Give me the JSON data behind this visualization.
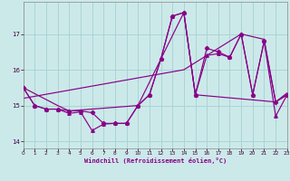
{
  "background_color": "#cce9e9",
  "grid_color": "#aad4d4",
  "line_color": "#880088",
  "xlim": [
    0,
    23
  ],
  "ylim": [
    13.8,
    17.9
  ],
  "yticks": [
    14,
    15,
    16,
    17
  ],
  "xticks": [
    0,
    1,
    2,
    3,
    4,
    5,
    6,
    7,
    8,
    9,
    10,
    11,
    12,
    13,
    14,
    15,
    16,
    17,
    18,
    19,
    20,
    21,
    22,
    23
  ],
  "xlabel": "Windchill (Refroidissement éolien,°C)",
  "series1_x": [
    0,
    1,
    2,
    3,
    4,
    5,
    6,
    7,
    8,
    9,
    10,
    11,
    12,
    13,
    14,
    15,
    16,
    17,
    18,
    19,
    20,
    21,
    22,
    23
  ],
  "series1_y": [
    15.5,
    15.0,
    14.9,
    14.9,
    14.85,
    14.85,
    14.8,
    14.5,
    14.5,
    14.5,
    15.0,
    15.3,
    16.3,
    17.5,
    17.6,
    15.3,
    16.6,
    16.5,
    16.35,
    17.0,
    15.3,
    16.8,
    15.1,
    15.3
  ],
  "series1_marker": "D",
  "series2_x": [
    0,
    1,
    2,
    3,
    4,
    5,
    6,
    7,
    8,
    9,
    10,
    11,
    12,
    13,
    14,
    15,
    16,
    17,
    18,
    19,
    20,
    21,
    22,
    23
  ],
  "series2_y": [
    15.5,
    15.0,
    14.9,
    14.9,
    14.78,
    14.82,
    14.3,
    14.48,
    14.5,
    14.5,
    15.0,
    15.3,
    16.3,
    17.5,
    17.6,
    15.3,
    16.4,
    16.45,
    16.35,
    17.0,
    15.3,
    16.8,
    14.7,
    15.3
  ],
  "series2_marker": "^",
  "series3_x": [
    0,
    3,
    4,
    10,
    14,
    15,
    22,
    23
  ],
  "series3_y": [
    15.5,
    15.0,
    14.85,
    15.0,
    17.6,
    15.3,
    15.1,
    15.3
  ],
  "series4_x": [
    0,
    14,
    19,
    21,
    22,
    23
  ],
  "series4_y": [
    15.2,
    16.0,
    17.0,
    16.85,
    15.1,
    15.35
  ]
}
